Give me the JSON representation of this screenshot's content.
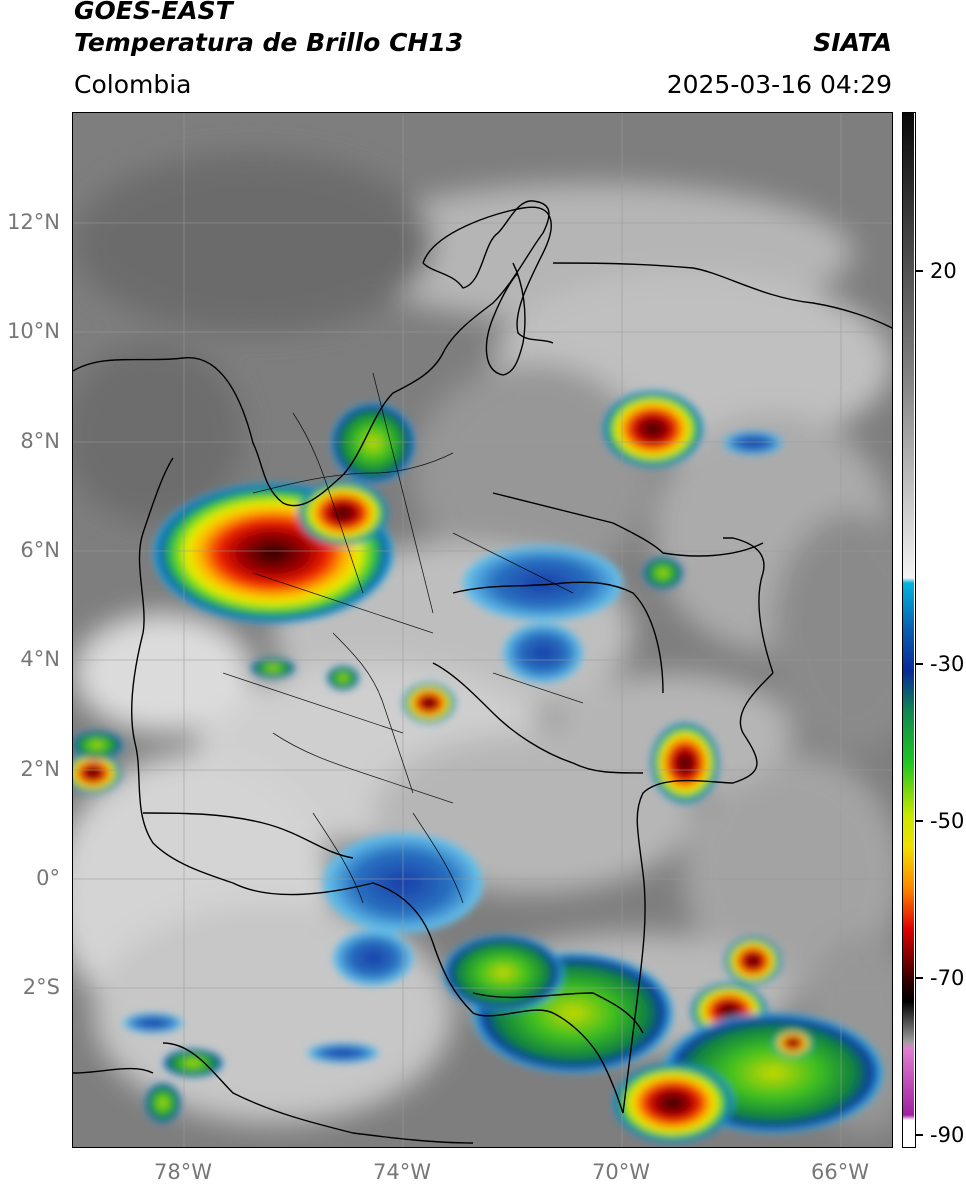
{
  "header": {
    "title_line1": "GOES-EAST",
    "title_line2": "Temperatura de Brillo CH13",
    "region": "Colombia",
    "source": "SIATA",
    "timestamp": "2025-03-16 04:29"
  },
  "map": {
    "lat_labels": [
      "12°N",
      "10°N",
      "8°N",
      "6°N",
      "4°N",
      "2°N",
      "0°",
      "2°S"
    ],
    "lon_labels": [
      "78°W",
      "74°W",
      "70°W",
      "66°W"
    ],
    "background": "satellite infrared brightness temperature, grayscale with colored deep convection",
    "overlays": [
      "coastline",
      "country-borders",
      "department-borders",
      "graticule"
    ]
  },
  "colorbar": {
    "tick_labels": [
      "20",
      "-30",
      "-50",
      "-70",
      "-90"
    ],
    "colors": {
      "warm_gray_top": "#0a0a0a",
      "cyan": "#00b4e0",
      "blue": "#0a2a9a",
      "green": "#20c820",
      "yellow": "#f0e000",
      "red": "#e00000",
      "dark_red": "#300000",
      "magenta": "#c040c0"
    }
  }
}
